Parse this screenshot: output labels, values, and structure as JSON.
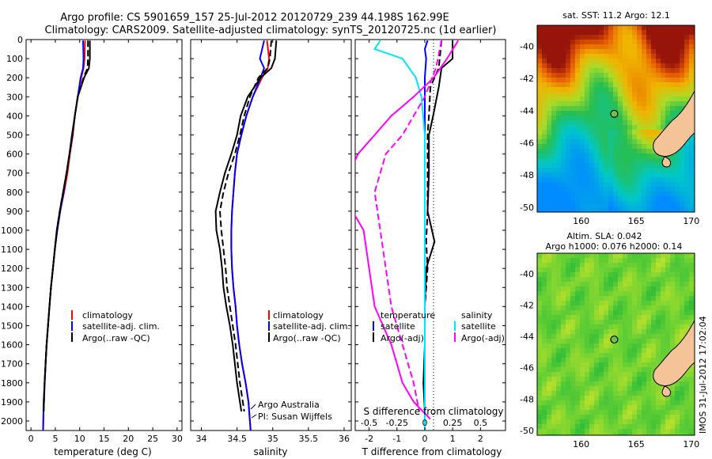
{
  "header": {
    "line1": "Argo profile: CS 5901659_157 25-Jul-2012 20120729_239 44.198S 162.99E",
    "line2": "Climatology: CARS2009. Satellite-adjusted climatology: synTS_20120725.nc (1d earlier)"
  },
  "credit": {
    "line1": "Argo Australia",
    "line2": "PI: Susan Wijffels"
  },
  "imos_stamp": "IMOS 31-Jul-2012 17:02:04",
  "colors": {
    "climatology": "#ff0000",
    "satellite": "#0000ff",
    "argo": "#000000",
    "satellite_salinity": "#00e5ff",
    "argo_salinity": "#ff00ff",
    "land": "#f5c398"
  },
  "chart_data": [
    {
      "id": "temperature",
      "type": "line",
      "xlabel": "temperature (deg C)",
      "ylabel": "",
      "xlim": [
        -1,
        31
      ],
      "ylim": [
        2050,
        0
      ],
      "xticks": [
        "0",
        "5",
        "10",
        "15",
        "20",
        "25",
        "30"
      ],
      "yticks": [
        "0",
        "100",
        "200",
        "300",
        "400",
        "500",
        "600",
        "700",
        "800",
        "900",
        "1000",
        "1100",
        "1200",
        "1300",
        "1400",
        "1500",
        "1600",
        "1700",
        "1800",
        "1900",
        "2000"
      ],
      "legend": [
        "climatology",
        "satellite-adj. clim.",
        "Argo(..raw -QC)"
      ],
      "series": [
        {
          "name": "climatology",
          "x": [
            11.1,
            11.0,
            10.8,
            10.3,
            9.6,
            9.0,
            8.6,
            8.0,
            7.5,
            6.8,
            6.0,
            5.4,
            4.9,
            4.5,
            4.1,
            3.8,
            3.5,
            3.2,
            3.0,
            2.8,
            2.6,
            2.5
          ],
          "y": [
            5,
            100,
            150,
            200,
            300,
            400,
            500,
            600,
            700,
            800,
            900,
            1000,
            1100,
            1200,
            1300,
            1400,
            1500,
            1600,
            1700,
            1800,
            1900,
            2050
          ]
        },
        {
          "name": "satellite-adj. clim.",
          "x": [
            10.7,
            10.8,
            10.7,
            10.2,
            9.6,
            9.0,
            8.4,
            7.9,
            7.3,
            6.7,
            6.0,
            5.4,
            4.9,
            4.5,
            4.1,
            3.8,
            3.5,
            3.2,
            3.0,
            2.8,
            2.6,
            2.5
          ],
          "y": [
            5,
            100,
            150,
            200,
            300,
            400,
            500,
            600,
            700,
            800,
            900,
            1000,
            1100,
            1200,
            1300,
            1400,
            1500,
            1600,
            1700,
            1800,
            1900,
            2050
          ]
        },
        {
          "name": "Argo(..raw -QC)",
          "x": [
            12.1,
            12.1,
            11.9,
            10.9,
            9.6,
            9.0,
            8.5,
            7.9,
            7.3,
            6.6,
            5.9,
            5.3,
            4.9,
            4.5,
            4.1,
            3.8,
            3.5,
            3.2,
            3.0,
            2.8,
            2.6
          ],
          "y": [
            5,
            100,
            150,
            200,
            300,
            400,
            500,
            600,
            700,
            800,
            900,
            1000,
            1100,
            1200,
            1300,
            1400,
            1500,
            1600,
            1700,
            1800,
            1950
          ]
        },
        {
          "name": "Argo(..raw -QC) adj",
          "x": [
            11.7,
            11.7,
            11.6,
            10.8,
            9.6,
            9.0,
            8.5,
            7.9,
            7.3,
            6.6,
            5.9,
            5.3,
            4.9,
            4.5,
            4.1,
            3.8,
            3.5,
            3.2,
            3.0,
            2.8,
            2.6
          ],
          "y": [
            5,
            100,
            150,
            200,
            300,
            400,
            500,
            600,
            700,
            800,
            900,
            1000,
            1100,
            1200,
            1300,
            1400,
            1500,
            1600,
            1700,
            1800,
            1950
          ],
          "dash": true
        }
      ]
    },
    {
      "id": "salinity",
      "type": "line",
      "xlabel": "salinity",
      "ylabel": "",
      "xlim": [
        33.85,
        36.1
      ],
      "ylim": [
        2050,
        0
      ],
      "xticks": [
        "34",
        "34.5",
        "35",
        "35.5",
        "36"
      ],
      "legend": [
        "climatology",
        "satellite-adj. clim.",
        "Argo(..raw -QC)"
      ],
      "series": [
        {
          "name": "climatology",
          "x": [
            34.92,
            34.95,
            34.93,
            34.85,
            34.72,
            34.63,
            34.56,
            34.5,
            34.47,
            34.45,
            34.43,
            34.42,
            34.42,
            34.43,
            34.45,
            34.48,
            34.5,
            34.53,
            34.57,
            34.62,
            34.66,
            34.69
          ],
          "y": [
            5,
            100,
            150,
            200,
            300,
            400,
            500,
            600,
            700,
            800,
            900,
            1000,
            1100,
            1200,
            1300,
            1400,
            1500,
            1600,
            1700,
            1800,
            1900,
            2050
          ]
        },
        {
          "name": "satellite-adj. clim.",
          "x": [
            34.88,
            34.82,
            34.88,
            34.83,
            34.72,
            34.63,
            34.56,
            34.5,
            34.47,
            34.45,
            34.43,
            34.42,
            34.42,
            34.43,
            34.45,
            34.48,
            34.5,
            34.53,
            34.57,
            34.62,
            34.66,
            34.69
          ],
          "y": [
            5,
            100,
            150,
            200,
            300,
            400,
            500,
            600,
            700,
            800,
            900,
            1000,
            1100,
            1200,
            1300,
            1400,
            1500,
            1600,
            1700,
            1800,
            1900,
            2050
          ]
        },
        {
          "name": "Argo(..raw -QC)",
          "x": [
            35.05,
            35.03,
            34.98,
            34.83,
            34.65,
            34.55,
            34.5,
            34.42,
            34.33,
            34.26,
            34.2,
            34.21,
            34.26,
            34.29,
            34.31,
            34.35,
            34.4,
            34.44,
            34.47,
            34.5,
            34.56
          ],
          "y": [
            5,
            100,
            150,
            200,
            300,
            400,
            500,
            600,
            700,
            800,
            900,
            1000,
            1100,
            1200,
            1300,
            1400,
            1500,
            1600,
            1700,
            1800,
            1950
          ]
        },
        {
          "name": "Argo(..raw -QC) adj",
          "x": [
            34.98,
            34.96,
            34.93,
            34.8,
            34.68,
            34.6,
            34.54,
            34.47,
            34.38,
            34.31,
            34.26,
            34.28,
            34.31,
            34.34,
            34.36,
            34.4,
            34.44,
            34.48,
            34.51,
            34.54,
            34.6
          ],
          "y": [
            5,
            100,
            150,
            200,
            300,
            400,
            500,
            600,
            700,
            800,
            900,
            1000,
            1100,
            1200,
            1300,
            1400,
            1500,
            1600,
            1700,
            1800,
            1950
          ],
          "dash": true
        }
      ]
    },
    {
      "id": "difference",
      "type": "line",
      "xlabel": "T difference from climatology",
      "top_label": "S difference from climatology",
      "xlim": [
        -2.5,
        2.9
      ],
      "ylim": [
        2050,
        0
      ],
      "xticks": [
        "-2",
        "-1",
        "0",
        "1",
        "2"
      ],
      "s_xticks": [
        "-0.5",
        "-0.25",
        "0",
        "0.25",
        "0.5"
      ],
      "legend_headers": [
        "temperature",
        "salinity"
      ],
      "legend": [
        "satellite",
        "Argo(-adj)",
        "satellite",
        "Argo(-adj)"
      ],
      "series": [
        {
          "name": "satellite",
          "group": "temperature",
          "x": [
            0.1,
            0.0,
            0.05,
            0.0,
            0.0,
            0.0,
            0.0,
            0.0,
            0.0,
            0.0,
            0.0,
            0.0,
            0.0,
            0.0
          ],
          "y": [
            5,
            50,
            100,
            200,
            300,
            500,
            700,
            900,
            1100,
            1300,
            1500,
            1700,
            1900,
            2050
          ]
        },
        {
          "name": "Argo(-adj)",
          "group": "temperature",
          "x": [
            1.0,
            1.0,
            0.6,
            0.5,
            0.3,
            0.15,
            0.15,
            0.1,
            0.35,
            0.05,
            0.0,
            0.0,
            -0.05,
            0.0
          ],
          "y": [
            5,
            100,
            150,
            250,
            400,
            500,
            700,
            900,
            1060,
            1200,
            1400,
            1600,
            1800,
            1950
          ]
        },
        {
          "name": "Argo(-adj)",
          "group": "temperature",
          "x": [
            0.6,
            0.5,
            0.2,
            0.15,
            0.1,
            0.1,
            0.1,
            0.05,
            0.1,
            0.0,
            0.0,
            0.0,
            0.0
          ],
          "y": [
            5,
            150,
            250,
            400,
            500,
            700,
            900,
            1060,
            1200,
            1400,
            1600,
            1800,
            1950
          ],
          "dash": true
        },
        {
          "name": "satellite",
          "group": "salinity",
          "x": [
            -0.4,
            -0.45,
            -0.2,
            -0.08,
            -0.03,
            0.0,
            0.0,
            0.0,
            0.0,
            0.0,
            0.0,
            0.0,
            0.0,
            0.0
          ],
          "y": [
            5,
            50,
            100,
            200,
            300,
            500,
            700,
            900,
            1100,
            1300,
            1500,
            1700,
            1900,
            2050
          ]
        },
        {
          "name": "Argo(-adj)",
          "group": "salinity",
          "x": [
            0.3,
            0.2,
            0.08,
            -0.1,
            -0.3,
            -0.45,
            -0.6,
            -0.75,
            -0.55,
            -0.5,
            -0.45,
            -0.3,
            -0.2,
            -0.1,
            0.05
          ],
          "y": [
            5,
            100,
            200,
            300,
            400,
            500,
            600,
            800,
            1000,
            1200,
            1400,
            1600,
            1800,
            1900,
            1990
          ]
        },
        {
          "name": "Argo(-adj)",
          "group": "salinity",
          "x": [
            0.15,
            0.1,
            0.0,
            -0.1,
            -0.2,
            -0.35,
            -0.45,
            -0.4,
            -0.35,
            -0.3,
            -0.2,
            -0.1,
            -0.05
          ],
          "y": [
            5,
            150,
            300,
            400,
            500,
            600,
            800,
            1000,
            1200,
            1400,
            1600,
            1800,
            1950
          ],
          "dash": true
        }
      ]
    },
    {
      "id": "sst-map",
      "type": "heatmap",
      "title": "sat. SST: 11.2  Argo: 12.1",
      "xlim": [
        156,
        170.3
      ],
      "ylim": [
        -50.3,
        -38.7
      ],
      "xticks": [
        "160",
        "165",
        "170"
      ],
      "yticks": [
        "-40",
        "-42",
        "-44",
        "-46",
        "-48",
        "-50"
      ],
      "float_position": [
        163.0,
        -44.2
      ]
    },
    {
      "id": "sla-map",
      "type": "heatmap",
      "title_line1": "Altim. SLA: 0.042",
      "title_line2": "Argo h1000: 0.076 h2000: 0.14",
      "xlim": [
        156,
        170.3
      ],
      "ylim": [
        -50.3,
        -38.7
      ],
      "xticks": [
        "160",
        "165",
        "170"
      ],
      "yticks": [
        "-40",
        "-42",
        "-44",
        "-46",
        "-48",
        "-50"
      ],
      "float_position": [
        163.0,
        -44.2
      ]
    }
  ]
}
